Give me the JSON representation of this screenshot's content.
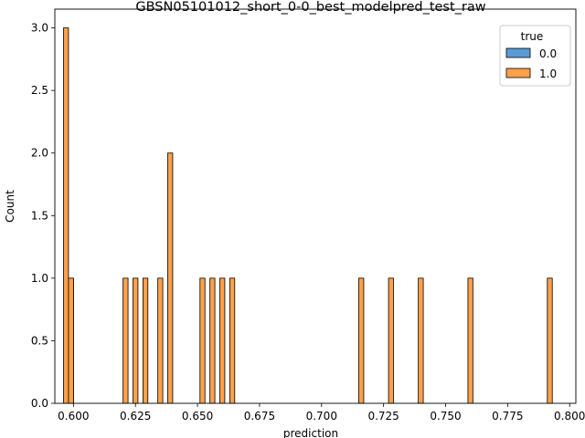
{
  "chart_data": {
    "type": "histogram",
    "title": "GBSN05101012_short_0-0_best_modelpred_test_raw",
    "xlabel": "prediction",
    "ylabel": "Count",
    "xlim": [
      0.5925,
      0.8025
    ],
    "ylim": [
      0,
      3.15
    ],
    "xticks": [
      0.6,
      0.625,
      0.65,
      0.675,
      0.7,
      0.725,
      0.75,
      0.775,
      0.8
    ],
    "xtick_labels": [
      "0.600",
      "0.625",
      "0.650",
      "0.675",
      "0.700",
      "0.725",
      "0.750",
      "0.775",
      "0.800"
    ],
    "yticks": [
      0.0,
      0.5,
      1.0,
      1.5,
      2.0,
      2.5,
      3.0
    ],
    "ytick_labels": [
      "0.0",
      "0.5",
      "1.0",
      "1.5",
      "2.0",
      "2.5",
      "3.0"
    ],
    "bin_width": 0.002,
    "legend": {
      "title": "true",
      "position": "top-right",
      "entries": [
        {
          "label": "0.0",
          "color": "#5b9bd5"
        },
        {
          "label": "1.0",
          "color": "#ffa04a"
        }
      ]
    },
    "series": [
      {
        "name": "0.0",
        "color": "#5b9bd5",
        "bins": [
          {
            "start": 0.598,
            "count": 1
          }
        ]
      },
      {
        "name": "1.0",
        "color": "#ffa04a",
        "bins": [
          {
            "start": 0.596,
            "count": 3
          },
          {
            "start": 0.598,
            "count": 1
          },
          {
            "start": 0.62,
            "count": 1
          },
          {
            "start": 0.624,
            "count": 1
          },
          {
            "start": 0.628,
            "count": 1
          },
          {
            "start": 0.634,
            "count": 1
          },
          {
            "start": 0.638,
            "count": 2
          },
          {
            "start": 0.651,
            "count": 1
          },
          {
            "start": 0.655,
            "count": 1
          },
          {
            "start": 0.659,
            "count": 1
          },
          {
            "start": 0.663,
            "count": 1
          },
          {
            "start": 0.715,
            "count": 1
          },
          {
            "start": 0.727,
            "count": 1
          },
          {
            "start": 0.739,
            "count": 1
          },
          {
            "start": 0.759,
            "count": 1
          },
          {
            "start": 0.791,
            "count": 1
          }
        ]
      }
    ]
  }
}
